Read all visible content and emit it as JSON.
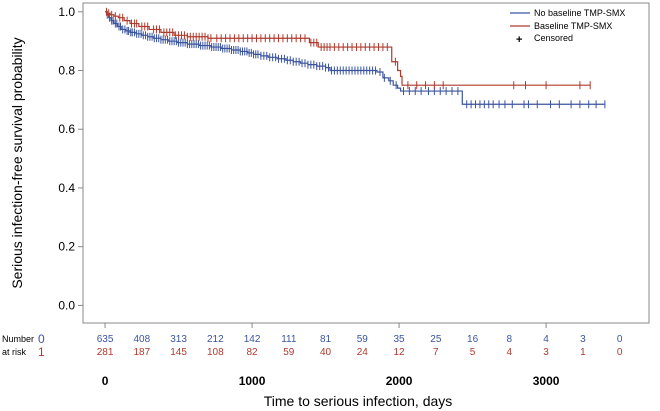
{
  "chart_data": {
    "type": "line",
    "subtype": "kaplan-meier",
    "title": "",
    "ylabel": "Serious infection-free survival probability",
    "xlabel": "Time to serious infection, days",
    "xlim": [
      -150,
      3700
    ],
    "ylim": [
      -0.06,
      1.03
    ],
    "yticks": [
      0.0,
      0.2,
      0.4,
      0.6,
      0.8,
      1.0
    ],
    "ytick_labels": [
      "0.0",
      "0.2",
      "0.4",
      "0.6",
      "0.8",
      "1.0"
    ],
    "xticks": [
      0,
      1000,
      2000,
      3000
    ],
    "xtick_labels": [
      "0",
      "1000",
      "2000",
      "3000"
    ],
    "legend_position": "top-right",
    "colors": {
      "blue": "#3b54a0",
      "red": "#b03a2e",
      "frame": "#888888"
    },
    "series": [
      {
        "name": "No baseline TMP-SMX",
        "color": "#3b54a0",
        "steps": [
          [
            0,
            1.0
          ],
          [
            10,
            0.99
          ],
          [
            25,
            0.98
          ],
          [
            40,
            0.97
          ],
          [
            60,
            0.96
          ],
          [
            85,
            0.95
          ],
          [
            110,
            0.94
          ],
          [
            140,
            0.935
          ],
          [
            170,
            0.93
          ],
          [
            210,
            0.925
          ],
          [
            250,
            0.92
          ],
          [
            290,
            0.915
          ],
          [
            330,
            0.91
          ],
          [
            380,
            0.905
          ],
          [
            430,
            0.9
          ],
          [
            490,
            0.895
          ],
          [
            560,
            0.89
          ],
          [
            640,
            0.885
          ],
          [
            720,
            0.88
          ],
          [
            790,
            0.875
          ],
          [
            860,
            0.87
          ],
          [
            920,
            0.865
          ],
          [
            970,
            0.86
          ],
          [
            1010,
            0.855
          ],
          [
            1060,
            0.85
          ],
          [
            1110,
            0.845
          ],
          [
            1170,
            0.84
          ],
          [
            1230,
            0.835
          ],
          [
            1280,
            0.83
          ],
          [
            1330,
            0.825
          ],
          [
            1380,
            0.82
          ],
          [
            1440,
            0.815
          ],
          [
            1500,
            0.81
          ],
          [
            1530,
            0.8
          ],
          [
            1850,
            0.795
          ],
          [
            1890,
            0.775
          ],
          [
            1930,
            0.765
          ],
          [
            1960,
            0.75
          ],
          [
            1990,
            0.74
          ],
          [
            2010,
            0.73
          ],
          [
            2430,
            0.685
          ],
          [
            3400,
            0.685
          ]
        ],
        "censored_at": [
          15,
          30,
          45,
          55,
          70,
          80,
          95,
          105,
          120,
          135,
          150,
          160,
          175,
          185,
          200,
          215,
          230,
          245,
          260,
          275,
          290,
          305,
          320,
          335,
          350,
          365,
          380,
          395,
          410,
          425,
          440,
          455,
          470,
          485,
          500,
          515,
          530,
          545,
          560,
          575,
          590,
          605,
          620,
          635,
          650,
          665,
          680,
          695,
          710,
          725,
          740,
          755,
          770,
          785,
          800,
          815,
          830,
          845,
          860,
          875,
          890,
          905,
          920,
          935,
          950,
          965,
          980,
          995,
          1010,
          1025,
          1040,
          1060,
          1080,
          1100,
          1120,
          1140,
          1160,
          1180,
          1200,
          1220,
          1240,
          1260,
          1280,
          1300,
          1320,
          1340,
          1360,
          1380,
          1400,
          1420,
          1440,
          1460,
          1480,
          1500,
          1520,
          1540,
          1560,
          1580,
          1600,
          1620,
          1640,
          1660,
          1680,
          1700,
          1720,
          1740,
          1760,
          1780,
          1800,
          1820,
          1840,
          1870,
          1900,
          1940,
          1980,
          2030,
          2070,
          2110,
          2150,
          2200,
          2240,
          2280,
          2320,
          2360,
          2400,
          2460,
          2490,
          2520,
          2550,
          2580,
          2610,
          2640,
          2680,
          2720,
          2770,
          2850,
          2880,
          2940,
          3030,
          3090,
          3170,
          3230,
          3290,
          3340,
          3400
        ]
      },
      {
        "name": "Baseline TMP-SMX",
        "color": "#b03a2e",
        "steps": [
          [
            0,
            1.0
          ],
          [
            15,
            0.995
          ],
          [
            35,
            0.99
          ],
          [
            60,
            0.985
          ],
          [
            90,
            0.98
          ],
          [
            130,
            0.97
          ],
          [
            170,
            0.96
          ],
          [
            230,
            0.95
          ],
          [
            300,
            0.94
          ],
          [
            380,
            0.93
          ],
          [
            470,
            0.92
          ],
          [
            560,
            0.915
          ],
          [
            700,
            0.91
          ],
          [
            1390,
            0.895
          ],
          [
            1450,
            0.88
          ],
          [
            1950,
            0.83
          ],
          [
            1990,
            0.8
          ],
          [
            2010,
            0.78
          ],
          [
            2020,
            0.75
          ],
          [
            3300,
            0.75
          ]
        ],
        "censored_at": [
          10,
          25,
          45,
          70,
          100,
          120,
          150,
          180,
          200,
          215,
          250,
          270,
          290,
          330,
          350,
          370,
          400,
          420,
          440,
          460,
          480,
          500,
          520,
          540,
          560,
          580,
          600,
          620,
          640,
          660,
          680,
          700,
          720,
          760,
          790,
          820,
          850,
          880,
          910,
          940,
          970,
          1000,
          1030,
          1060,
          1090,
          1120,
          1150,
          1180,
          1210,
          1240,
          1270,
          1300,
          1330,
          1360,
          1400,
          1420,
          1440,
          1470,
          1490,
          1510,
          1530,
          1560,
          1590,
          1620,
          1650,
          1680,
          1710,
          1740,
          1770,
          1800,
          1830,
          1860,
          1890,
          1920,
          1975,
          2060,
          2120,
          2180,
          2240,
          2300,
          2780,
          2860,
          3000,
          3230,
          3300
        ]
      }
    ],
    "censored_label": "Censored",
    "censored_marker": "+",
    "risk_table": {
      "title_line1": "Number",
      "title_line2": "at risk",
      "times": [
        0,
        250,
        500,
        750,
        1000,
        1250,
        1500,
        1750,
        2000,
        2250,
        2500,
        2750,
        3000,
        3250,
        3500
      ],
      "rows": [
        {
          "group": "0",
          "color": "#3b54a0",
          "counts": [
            "635",
            "408",
            "313",
            "212",
            "142",
            "111",
            "81",
            "59",
            "35",
            "25",
            "16",
            "8",
            "4",
            "3",
            "0"
          ]
        },
        {
          "group": "1",
          "color": "#b03a2e",
          "counts": [
            "281",
            "187",
            "145",
            "108",
            "82",
            "59",
            "40",
            "24",
            "12",
            "7",
            "5",
            "4",
            "3",
            "1",
            "0"
          ]
        }
      ]
    }
  }
}
